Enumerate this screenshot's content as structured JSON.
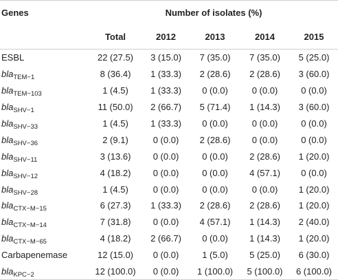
{
  "header": {
    "genes_label": "Genes",
    "group_label": "Number of isolates (%)",
    "columns": [
      "Total",
      "2012",
      "2013",
      "2014",
      "2015"
    ]
  },
  "rows": [
    {
      "prefix": "",
      "base": "ESBL",
      "sub": "",
      "values": [
        "22 (27.5)",
        "3 (15.0)",
        "7 (35.0)",
        "7 (35.0)",
        "5 (25.0)"
      ]
    },
    {
      "prefix": "bla",
      "base": "",
      "sub": "TEM−1",
      "values": [
        "8 (36.4)",
        "1 (33.3)",
        "2 (28.6)",
        "2 (28.6)",
        "3 (60.0)"
      ]
    },
    {
      "prefix": "bla",
      "base": "",
      "sub": "TEM−103",
      "values": [
        "1 (4.5)",
        "1 (33.3)",
        "0 (0.0)",
        "0 (0.0)",
        "0 (0.0)"
      ]
    },
    {
      "prefix": "bla",
      "base": "",
      "sub": "SHV−1",
      "values": [
        "11 (50.0)",
        "2 (66.7)",
        "5 (71.4)",
        "1 (14.3)",
        "3 (60.0)"
      ]
    },
    {
      "prefix": "bla",
      "base": "",
      "sub": "SHV−33",
      "values": [
        "1 (4.5)",
        "1 (33.3)",
        "0 (0.0)",
        "0 (0.0)",
        "0 (0.0)"
      ]
    },
    {
      "prefix": "bla",
      "base": "",
      "sub": "SHV−36",
      "values": [
        "2 (9.1)",
        "0 (0.0)",
        "2 (28.6)",
        "0 (0.0)",
        "0 (0.0)"
      ]
    },
    {
      "prefix": "bla",
      "base": "",
      "sub": "SHV−11",
      "values": [
        "3 (13.6)",
        "0 (0.0)",
        "0 (0.0)",
        "2 (28.6)",
        "1 (20.0)"
      ]
    },
    {
      "prefix": "bla",
      "base": "",
      "sub": "SHV−12",
      "values": [
        "4 (18.2)",
        "0 (0.0)",
        "0 (0.0)",
        "4 (57.1)",
        "0 (0.0)"
      ]
    },
    {
      "prefix": "bla",
      "base": "",
      "sub": "SHV−28",
      "values": [
        "1 (4.5)",
        "0 (0.0)",
        "0 (0.0)",
        "0 (0.0)",
        "1 (20.0)"
      ]
    },
    {
      "prefix": "bla",
      "base": "",
      "sub": "CTX−M−15",
      "values": [
        "6 (27.3)",
        "1 (33.3)",
        "2 (28.6)",
        "2 (28.6)",
        "1 (20.0)"
      ]
    },
    {
      "prefix": "bla",
      "base": "",
      "sub": "CTX−M−14",
      "values": [
        "7 (31.8)",
        "0 (0.0)",
        "4 (57.1)",
        "1 (14.3)",
        "2 (40.0)"
      ]
    },
    {
      "prefix": "bla",
      "base": "",
      "sub": "CTX−M−65",
      "values": [
        "4 (18.2)",
        "2 (66.7)",
        "0 (0.0)",
        "1 (14.3)",
        "1 (20.0)"
      ]
    },
    {
      "prefix": "",
      "base": "Carbapenemase",
      "sub": "",
      "values": [
        "12 (15.0)",
        "0 (0.0)",
        "1 (5.0)",
        "5 (25.0)",
        "6 (30.0)"
      ]
    },
    {
      "prefix": "bla",
      "base": "",
      "sub": "KPC−2",
      "values": [
        "12 (100.0)",
        "0 (0.0)",
        "1 (100.0)",
        "5 (100.0)",
        "6 (100.0)"
      ]
    }
  ]
}
